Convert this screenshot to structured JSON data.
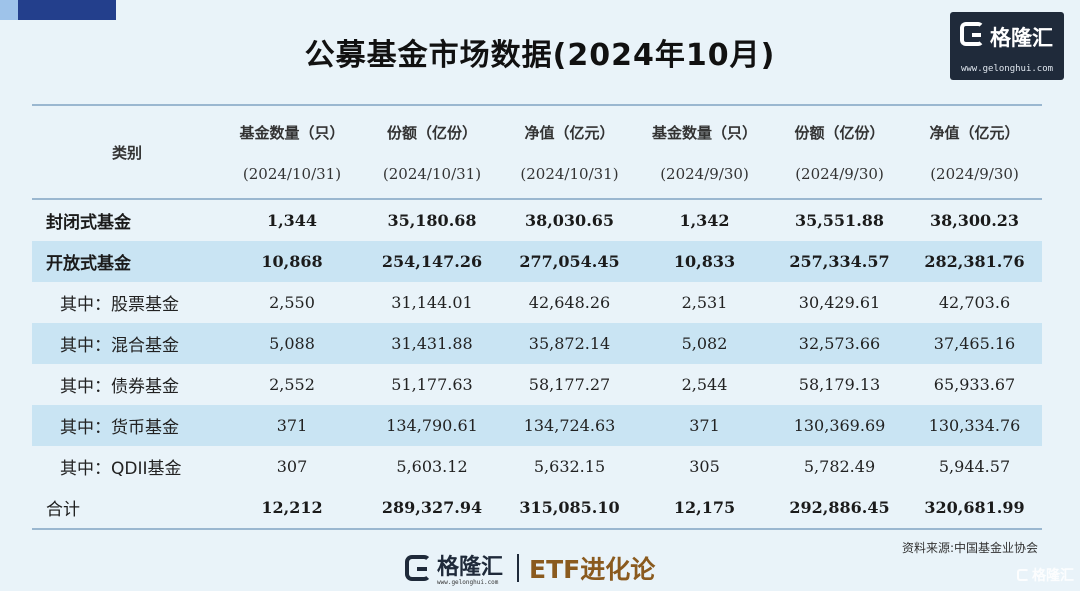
{
  "title": "公募基金市场数据(2024年10月)",
  "brand": {
    "name": "格隆汇",
    "url": "www.gelonghui.com",
    "column": "ETF进化论"
  },
  "source": "资料来源:中国基金业协会",
  "watermark": "格隆汇",
  "table": {
    "category_header": "类别",
    "columns": [
      {
        "name": "基金数量（只）",
        "date": "(2024/10/31)"
      },
      {
        "name": "份额（亿份）",
        "date": "(2024/10/31)"
      },
      {
        "name": "净值（亿元）",
        "date": "(2024/10/31)"
      },
      {
        "name": "基金数量（只）",
        "date": "(2024/9/30)"
      },
      {
        "name": "份额（亿份）",
        "date": "(2024/9/30)"
      },
      {
        "name": "净值（亿元）",
        "date": "(2024/9/30)"
      }
    ],
    "rows": [
      {
        "label": "封闭式基金",
        "values": [
          "1,344",
          "35,180.68",
          "38,030.65",
          "1,342",
          "35,551.88",
          "38,300.23"
        ]
      },
      {
        "label": "开放式基金",
        "values": [
          "10,868",
          "254,147.26",
          "277,054.45",
          "10,833",
          "257,334.57",
          "282,381.76"
        ]
      },
      {
        "label": "其中：股票基金",
        "values": [
          "2,550",
          "31,144.01",
          "42,648.26",
          "2,531",
          "30,429.61",
          "42,703.6"
        ]
      },
      {
        "label": "其中：混合基金",
        "values": [
          "5,088",
          "31,431.88",
          "35,872.14",
          "5,082",
          "32,573.66",
          "37,465.16"
        ]
      },
      {
        "label": "其中：债券基金",
        "values": [
          "2,552",
          "51,177.63",
          "58,177.27",
          "2,544",
          "58,179.13",
          "65,933.67"
        ]
      },
      {
        "label": "其中：货币基金",
        "values": [
          "371",
          "134,790.61",
          "134,724.63",
          "371",
          "130,369.69",
          "130,334.76"
        ]
      },
      {
        "label": "其中：QDII基金",
        "values": [
          "307",
          "5,603.12",
          "5,632.15",
          "305",
          "5,782.49",
          "5,944.57"
        ]
      },
      {
        "label": "合计",
        "values": [
          "12,212",
          "289,327.94",
          "315,085.10",
          "12,175",
          "292,886.45",
          "320,681.99"
        ]
      }
    ]
  },
  "colors": {
    "background": "#e9f3f9",
    "row_highlight": "#c9e4f3",
    "rule": "#9ab7d0",
    "logo_dark": "#1f2a3a",
    "etf_brown": "#8a5a1e"
  }
}
